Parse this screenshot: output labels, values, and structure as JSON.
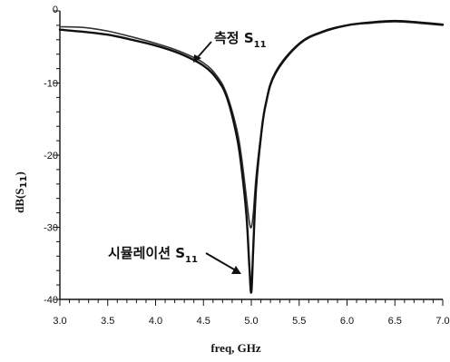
{
  "chart_data": {
    "type": "line",
    "xlabel": "freq, GHz",
    "ylabel_main": "dB(S",
    "ylabel_sub": "11",
    "ylabel_close": ")",
    "xlim": [
      3.0,
      7.0
    ],
    "ylim": [
      -40,
      0
    ],
    "x_ticks": [
      "3.0",
      "3.5",
      "4.0",
      "4.5",
      "5.0",
      "5.5",
      "6.0",
      "6.5",
      "7.0"
    ],
    "y_ticks": [
      "0",
      "-10",
      "-20",
      "-30",
      "-40"
    ],
    "grid": false,
    "series": [
      {
        "name": "측정 S11",
        "x": [
          3.0,
          3.25,
          3.5,
          3.75,
          4.0,
          4.25,
          4.5,
          4.65,
          4.75,
          4.85,
          4.9,
          4.95,
          4.98,
          5.0,
          5.02,
          5.05,
          5.1,
          5.15,
          5.25,
          5.5,
          5.75,
          6.0,
          6.25,
          6.5,
          6.75,
          7.0
        ],
        "values": [
          -2.2,
          -2.3,
          -2.8,
          -3.6,
          -4.5,
          -5.6,
          -7.2,
          -9.2,
          -11.8,
          -16.5,
          -20.5,
          -26.0,
          -29.3,
          -30.0,
          -28.2,
          -23.0,
          -17.2,
          -12.8,
          -8.5,
          -4.5,
          -2.8,
          -2.0,
          -1.7,
          -1.5,
          -1.7,
          -2.0
        ]
      },
      {
        "name": "시뮬레이션 S11",
        "x": [
          3.0,
          3.25,
          3.5,
          3.75,
          4.0,
          4.25,
          4.5,
          4.65,
          4.75,
          4.85,
          4.9,
          4.95,
          4.98,
          5.0,
          5.02,
          5.05,
          5.1,
          5.15,
          5.25,
          5.5,
          5.75,
          6.0,
          6.25,
          6.5,
          6.75,
          7.0
        ],
        "values": [
          -2.6,
          -2.9,
          -3.3,
          -4.0,
          -4.8,
          -5.9,
          -7.6,
          -9.6,
          -12.2,
          -17.5,
          -22.0,
          -28.5,
          -35.5,
          -39.0,
          -33.0,
          -24.5,
          -17.5,
          -13.0,
          -8.7,
          -4.6,
          -2.9,
          -2.0,
          -1.6,
          -1.4,
          -1.6,
          -1.9
        ]
      }
    ],
    "annotations": {
      "measured_main": "측정 S",
      "measured_sub": "11",
      "simulated_main": "시뮬레이션 S",
      "simulated_sub": "11"
    }
  }
}
